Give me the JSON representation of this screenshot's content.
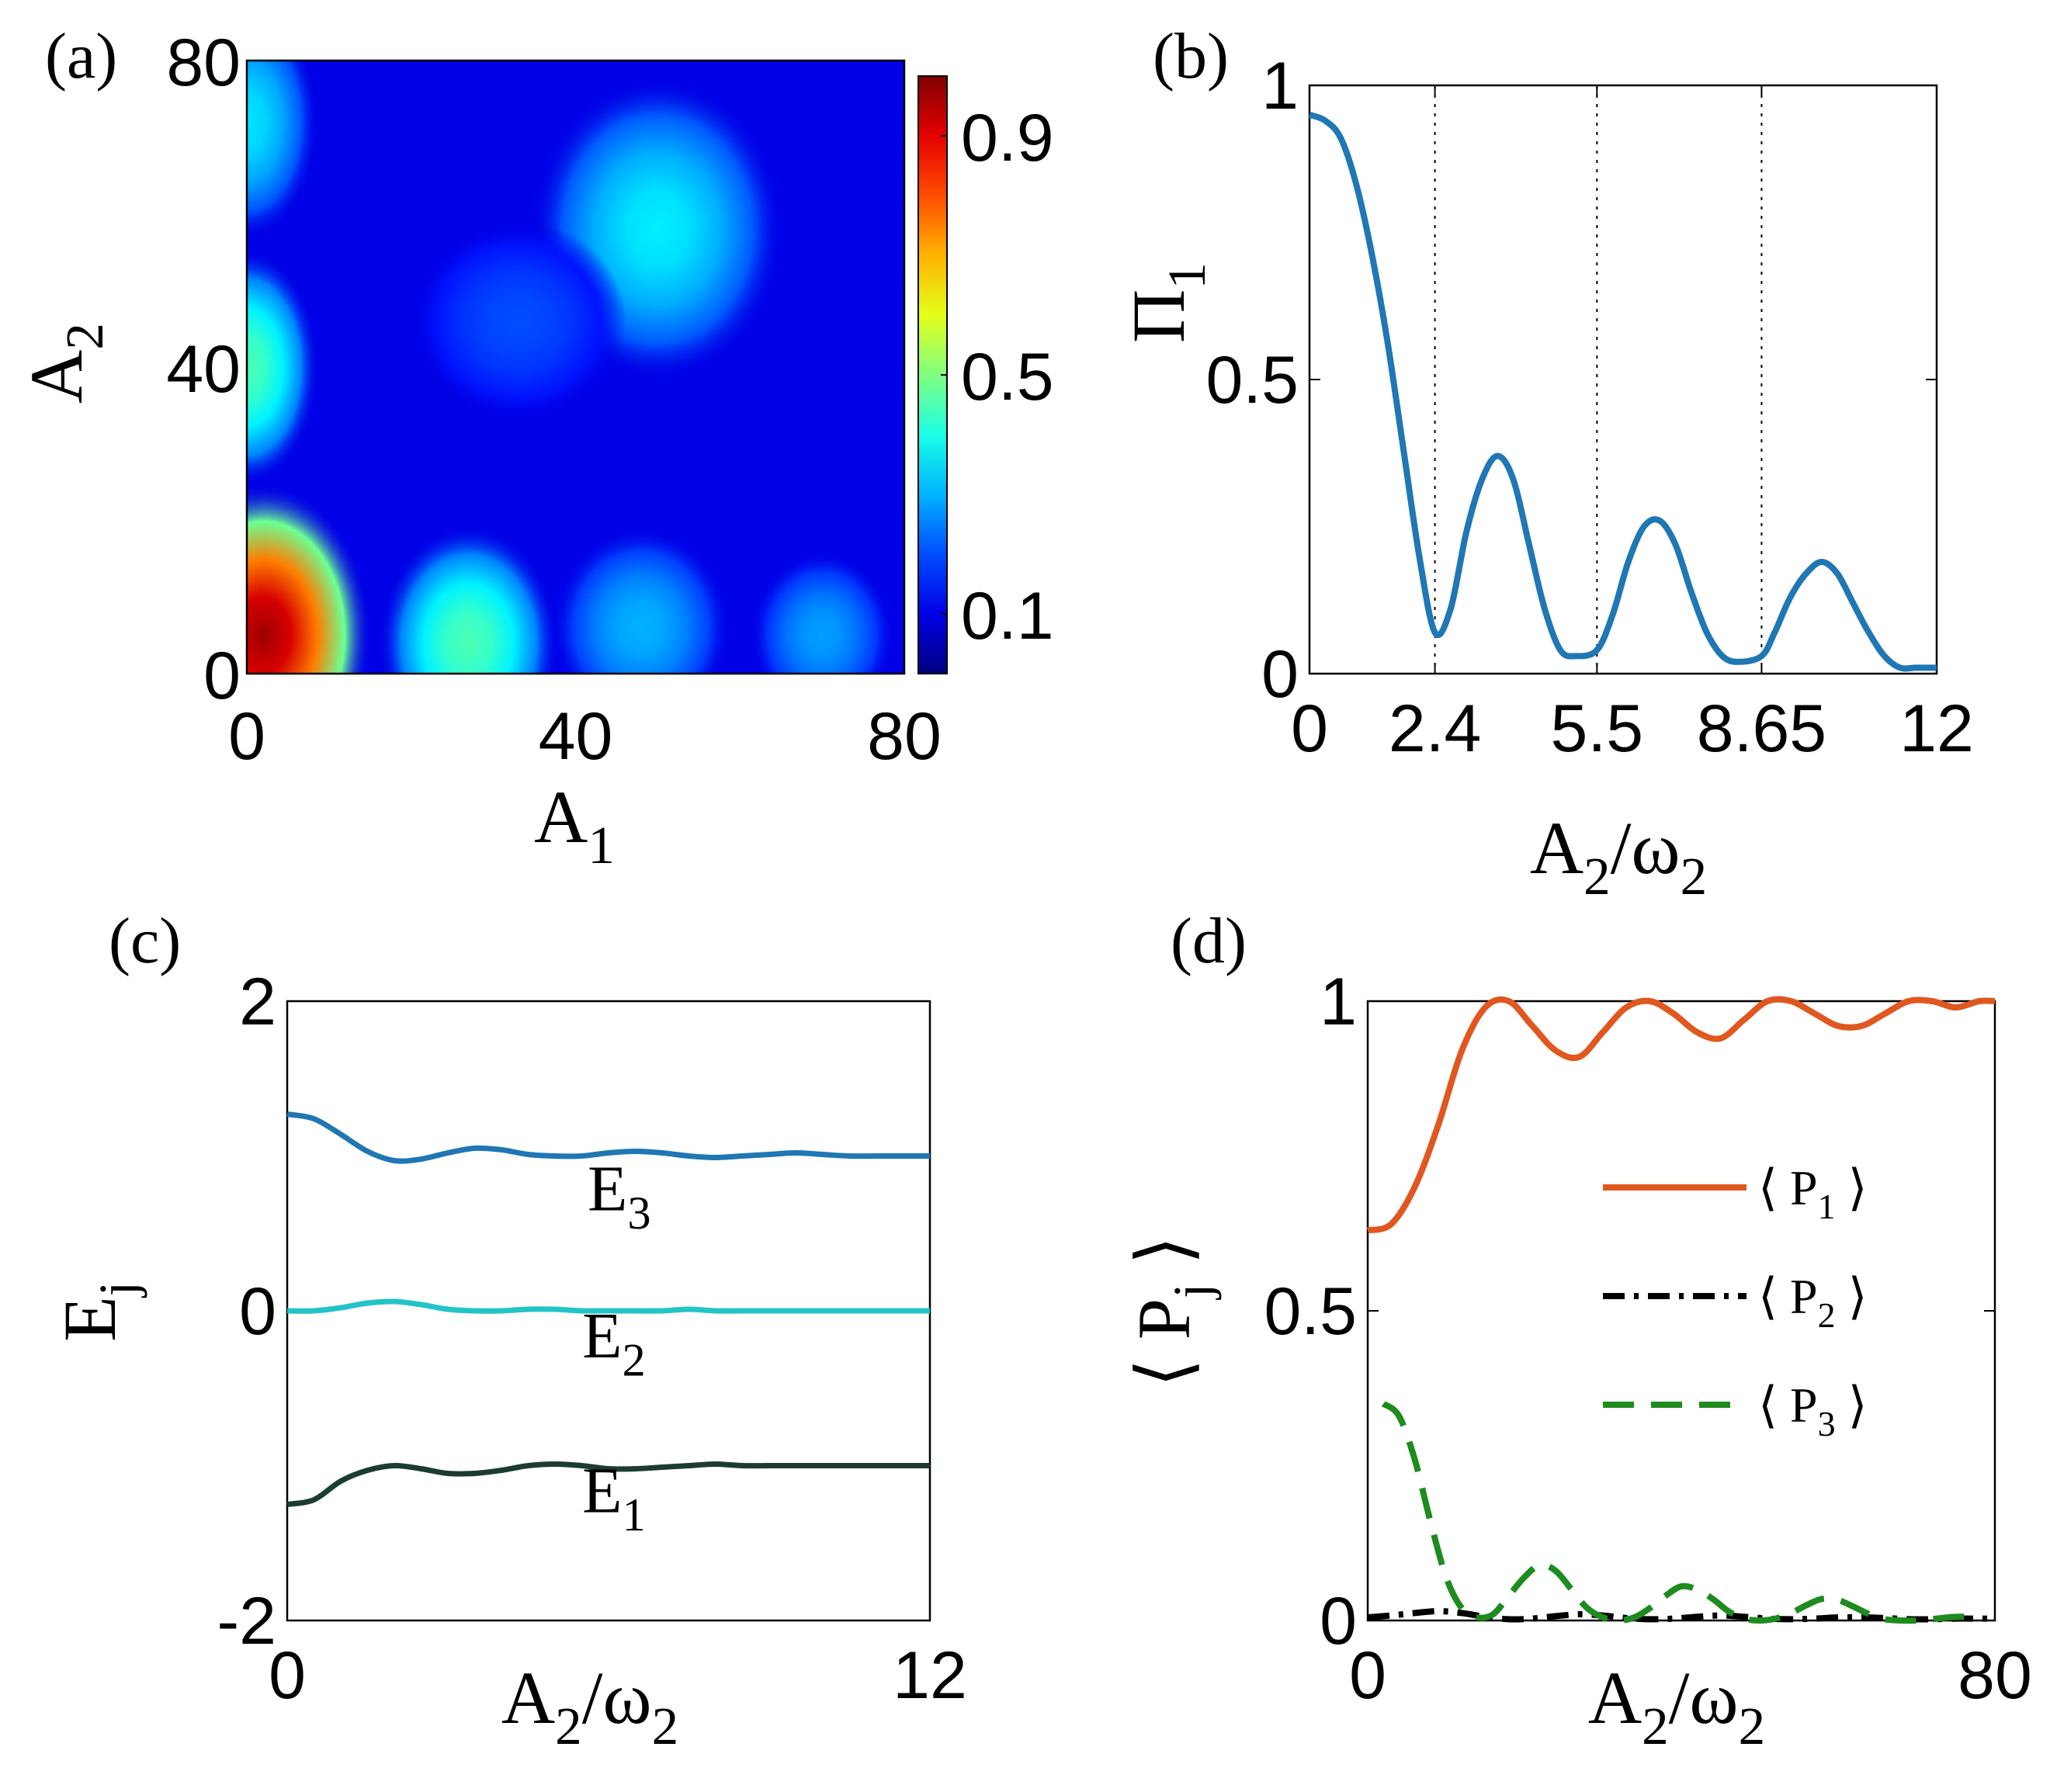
{
  "colors": {
    "blue_curve": "#1f77b4",
    "e3": "#1f77b4",
    "e2": "#22c4c8",
    "e1": "#1b3d2f",
    "p1": "#e0571f",
    "p2": "#000000",
    "p3": "#1e8b1e"
  },
  "chart_data": [
    {
      "id": "a",
      "type": "heatmap",
      "panel_label": "(a)",
      "xlabel": "A",
      "xlabel_sub": "1",
      "ylabel": "A",
      "ylabel_sub": "2",
      "xlim": [
        0,
        80
      ],
      "ylim": [
        0,
        80
      ],
      "xticks": [
        "0",
        "40",
        "80"
      ],
      "yticks": [
        "0",
        "40",
        "80"
      ],
      "colorbar_ticks": [
        "0.1",
        "0.5",
        "0.9"
      ],
      "colorbar_range": [
        0,
        1
      ],
      "background_value": 0.1,
      "blobs": [
        {
          "x": 2,
          "y": 5,
          "value": 0.97,
          "sx": 6,
          "sy": 9
        },
        {
          "x": 0,
          "y": 40,
          "value": 0.45,
          "sx": 4,
          "sy": 7
        },
        {
          "x": 0,
          "y": 72,
          "value": 0.35,
          "sx": 4,
          "sy": 7
        },
        {
          "x": 27,
          "y": 4,
          "value": 0.45,
          "sx": 5,
          "sy": 7
        },
        {
          "x": 50,
          "y": 58,
          "value": 0.36,
          "sx": 7,
          "sy": 9
        },
        {
          "x": 48,
          "y": 6,
          "value": 0.3,
          "sx": 5,
          "sy": 6
        },
        {
          "x": 70,
          "y": 5,
          "value": 0.28,
          "sx": 4,
          "sy": 5
        },
        {
          "x": 33,
          "y": 46,
          "value": 0.2,
          "sx": 6,
          "sy": 6
        }
      ]
    },
    {
      "id": "b",
      "type": "line",
      "panel_label": "(b)",
      "xlabel": "A",
      "xlabel_sub": "2",
      "xlabel_mid": "/ω",
      "xlabel_sub2": "2",
      "ylabel": "Π",
      "ylabel_sub": "1",
      "xlim": [
        0,
        12
      ],
      "ylim": [
        0,
        1
      ],
      "xticks": [
        0,
        2.4,
        5.5,
        8.65,
        12
      ],
      "xtick_labels": [
        "0",
        "2.4",
        "5.5",
        "8.65",
        "12"
      ],
      "yticks": [
        0,
        0.5,
        1
      ],
      "ytick_labels": [
        "0",
        "0.5",
        "1"
      ],
      "vlines": [
        2.4,
        5.5,
        8.65
      ],
      "series": [
        {
          "name": "Π1",
          "x": [
            0,
            0.3,
            0.6,
            0.9,
            1.2,
            1.5,
            1.8,
            2.1,
            2.4,
            2.7,
            3.0,
            3.3,
            3.6,
            3.9,
            4.2,
            4.5,
            4.8,
            5.1,
            5.5,
            5.8,
            6.1,
            6.4,
            6.7,
            7.0,
            7.3,
            7.6,
            7.9,
            8.2,
            8.65,
            8.9,
            9.2,
            9.5,
            9.8,
            10.1,
            10.4,
            10.7,
            11.0,
            11.3,
            11.6,
            12.0
          ],
          "y": [
            0.95,
            0.94,
            0.91,
            0.83,
            0.71,
            0.56,
            0.38,
            0.2,
            0.07,
            0.11,
            0.24,
            0.33,
            0.37,
            0.33,
            0.22,
            0.11,
            0.04,
            0.03,
            0.04,
            0.1,
            0.19,
            0.25,
            0.26,
            0.22,
            0.14,
            0.07,
            0.03,
            0.02,
            0.03,
            0.07,
            0.13,
            0.17,
            0.19,
            0.17,
            0.12,
            0.07,
            0.03,
            0.01,
            0.01,
            0.01
          ]
        }
      ]
    },
    {
      "id": "c",
      "type": "line",
      "panel_label": "(c)",
      "xlabel": "A",
      "xlabel_sub": "2",
      "xlabel_mid": "/ω",
      "xlabel_sub2": "2",
      "ylabel": "E",
      "ylabel_sub": "j",
      "xlim": [
        0,
        12
      ],
      "ylim": [
        -2,
        2
      ],
      "xticks": [
        0,
        12
      ],
      "xtick_labels": [
        "0",
        "12"
      ],
      "yticks": [
        -2,
        0,
        2
      ],
      "ytick_labels": [
        "-2",
        "0",
        "2"
      ],
      "series": [
        {
          "name": "E3",
          "label": "E",
          "label_sub": "3",
          "label_x": 6.2,
          "label_y": 0.65,
          "x": [
            0,
            0.5,
            1,
            1.5,
            2,
            2.5,
            3,
            3.5,
            4,
            4.5,
            5,
            5.5,
            6,
            6.5,
            7,
            7.5,
            8,
            8.5,
            9,
            9.5,
            10,
            10.5,
            11,
            11.5,
            12
          ],
          "y": [
            1.27,
            1.24,
            1.14,
            1.03,
            0.97,
            0.98,
            1.02,
            1.05,
            1.04,
            1.01,
            1.0,
            1.0,
            1.02,
            1.03,
            1.02,
            1.0,
            0.99,
            1.0,
            1.01,
            1.02,
            1.01,
            1.0,
            1.0,
            1.0,
            1.0
          ]
        },
        {
          "name": "E2",
          "label": "E",
          "label_sub": "2",
          "label_x": 6.1,
          "label_y": -0.3,
          "x": [
            0,
            0.5,
            1,
            1.5,
            2,
            2.5,
            3,
            3.5,
            4,
            4.5,
            5,
            5.5,
            6,
            6.5,
            7,
            7.5,
            8,
            8.5,
            9,
            9.5,
            10,
            10.5,
            11,
            11.5,
            12
          ],
          "y": [
            0.0,
            0.0,
            0.02,
            0.05,
            0.06,
            0.04,
            0.01,
            0.0,
            0.0,
            0.01,
            0.01,
            0.0,
            0.0,
            0.0,
            0.0,
            0.01,
            0.0,
            0.0,
            0.0,
            0.0,
            0.0,
            0.0,
            0.0,
            0.0,
            0.0
          ]
        },
        {
          "name": "E1",
          "label": "E",
          "label_sub": "1",
          "label_x": 6.1,
          "label_y": -1.3,
          "x": [
            0,
            0.5,
            1,
            1.5,
            2,
            2.5,
            3,
            3.5,
            4,
            4.5,
            5,
            5.5,
            6,
            6.5,
            7,
            7.5,
            8,
            8.5,
            9,
            9.5,
            10,
            10.5,
            11,
            11.5,
            12
          ],
          "y": [
            -1.25,
            -1.22,
            -1.1,
            -1.03,
            -1.0,
            -1.02,
            -1.05,
            -1.05,
            -1.03,
            -1.0,
            -0.99,
            -1.0,
            -1.02,
            -1.02,
            -1.01,
            -1.0,
            -0.99,
            -1.0,
            -1.0,
            -1.0,
            -1.0,
            -1.0,
            -1.0,
            -1.0,
            -1.0
          ]
        }
      ]
    },
    {
      "id": "d",
      "type": "line",
      "panel_label": "(d)",
      "xlabel": "A",
      "xlabel_sub": "2",
      "xlabel_mid": "/ω",
      "xlabel_sub2": "2",
      "ylabel": "⟨ P",
      "ylabel_sub": "j",
      "ylabel_end": " ⟩",
      "xlim": [
        0,
        80
      ],
      "ylim": [
        0,
        1
      ],
      "xticks": [
        0,
        80
      ],
      "xtick_labels": [
        "0",
        "80"
      ],
      "yticks": [
        0,
        0.5,
        1
      ],
      "ytick_labels": [
        "0",
        "0.5",
        "1"
      ],
      "series": [
        {
          "name": "P1",
          "legend": "⟨ P",
          "legend_sub": "1",
          "legend_end": " ⟩",
          "style": "solid",
          "x": [
            0,
            3,
            6,
            9,
            12,
            15,
            18,
            21,
            24,
            27,
            30,
            33,
            36,
            39,
            42,
            45,
            48,
            51,
            54,
            57,
            60,
            63,
            66,
            69,
            72,
            75,
            78,
            80
          ],
          "y": [
            0.63,
            0.64,
            0.7,
            0.8,
            0.92,
            0.99,
            1.0,
            0.96,
            0.92,
            0.91,
            0.95,
            0.99,
            1.0,
            0.98,
            0.95,
            0.94,
            0.97,
            1.0,
            1.0,
            0.98,
            0.96,
            0.96,
            0.98,
            1.0,
            1.0,
            0.99,
            1.0,
            1.0
          ]
        },
        {
          "name": "P2",
          "legend": "⟨ P",
          "legend_sub": "2",
          "legend_end": " ⟩",
          "style": "dashdot",
          "x": [
            0,
            3,
            6,
            9,
            12,
            15,
            18,
            21,
            24,
            27,
            30,
            33,
            36,
            39,
            42,
            45,
            48,
            51,
            54,
            57,
            60,
            63,
            66,
            69,
            72,
            75,
            78,
            80
          ],
          "y": [
            0.005,
            0.008,
            0.012,
            0.015,
            0.012,
            0.006,
            0.002,
            0.003,
            0.007,
            0.01,
            0.008,
            0.004,
            0.002,
            0.003,
            0.006,
            0.008,
            0.006,
            0.003,
            0.002,
            0.003,
            0.005,
            0.005,
            0.004,
            0.002,
            0.002,
            0.003,
            0.003,
            0.003
          ]
        },
        {
          "name": "P3",
          "legend": "⟨ P",
          "legend_sub": "3",
          "legend_end": " ⟩",
          "style": "dashed",
          "x": [
            2,
            4,
            6,
            8,
            10,
            12,
            14,
            16,
            18,
            20,
            22,
            24,
            26,
            28,
            30,
            32,
            34,
            36,
            38,
            40,
            42,
            44,
            46,
            48,
            50,
            52,
            54,
            56,
            58,
            60,
            62,
            64,
            66,
            68,
            70,
            72,
            74,
            76,
            78
          ],
          "y": [
            0.35,
            0.33,
            0.26,
            0.16,
            0.07,
            0.02,
            0.005,
            0.01,
            0.04,
            0.07,
            0.09,
            0.08,
            0.05,
            0.02,
            0.005,
            0.0,
            0.005,
            0.02,
            0.04,
            0.055,
            0.05,
            0.035,
            0.015,
            0.003,
            0.0,
            0.003,
            0.012,
            0.025,
            0.035,
            0.033,
            0.022,
            0.01,
            0.002,
            0.0,
            0.0,
            0.002,
            0.005,
            0.006,
            0.004
          ]
        }
      ]
    }
  ]
}
